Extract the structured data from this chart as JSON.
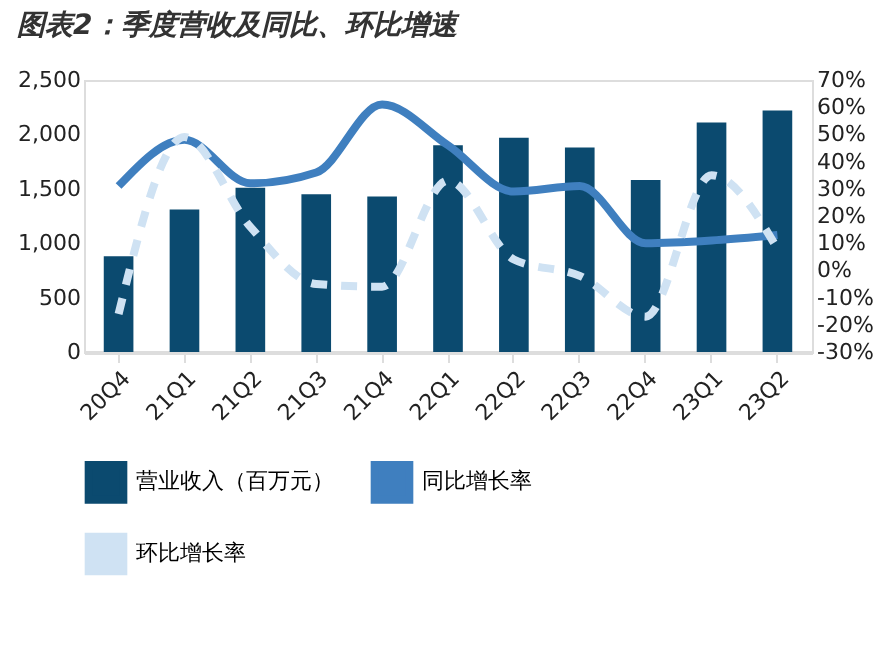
{
  "chart_data": {
    "type": "bar",
    "title": "图表2：季度营收及同比、环比增速",
    "categories": [
      "20Q4",
      "21Q1",
      "21Q2",
      "21Q3",
      "21Q4",
      "22Q1",
      "22Q2",
      "22Q3",
      "22Q4",
      "23Q1",
      "23Q2"
    ],
    "series": [
      {
        "name": "营业收入（百万元）",
        "color": "#0b4a6f",
        "values": [
          880,
          1310,
          1510,
          1450,
          1430,
          1900,
          1970,
          1880,
          1580,
          2110,
          2220
        ]
      },
      {
        "name": "同比增长率",
        "type": "line",
        "axis": "y2",
        "line_style": "solid",
        "color": "#3f7fbf",
        "values": [
          31,
          48,
          32,
          36,
          61,
          46,
          29,
          31,
          10,
          11,
          13
        ]
      },
      {
        "name": "环比增长率",
        "type": "line",
        "axis": "y2",
        "line_style": "dashed",
        "color": "#cfe2f3",
        "values": [
          -16,
          49,
          16,
          -5,
          -6,
          33,
          4,
          -2,
          -17,
          35,
          8
        ]
      }
    ],
    "ylim": [
      0,
      2500
    ],
    "yticks": [
      0,
      500,
      {
        "value": 1000,
        "label": "1,000"
      },
      {
        "value": 1500,
        "label": "1,500"
      },
      {
        "value": 2000,
        "label": "2,000"
      },
      {
        "value": 2500,
        "label": "2,500"
      }
    ],
    "y2lim": [
      -30,
      70
    ],
    "y2ticks": [
      {
        "value": -30,
        "label": "-30%"
      },
      {
        "value": -20,
        "label": "-20%"
      },
      {
        "value": -10,
        "label": "-10%"
      },
      {
        "value": 0,
        "label": "0%"
      },
      {
        "value": 10,
        "label": "10%"
      },
      {
        "value": 20,
        "label": "20%"
      },
      {
        "value": 30,
        "label": "30%"
      },
      {
        "value": 40,
        "label": "40%"
      },
      {
        "value": 50,
        "label": "50%"
      },
      {
        "value": 60,
        "label": "60%"
      },
      {
        "value": 70,
        "label": "70%"
      }
    ],
    "grid": false,
    "legend": "bottom",
    "marker": "none"
  }
}
